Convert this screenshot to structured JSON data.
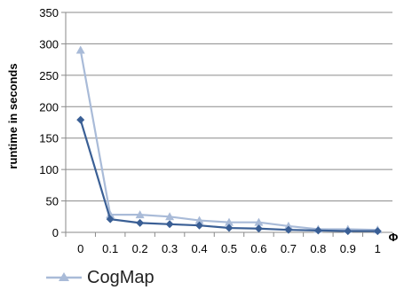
{
  "chart_data": {
    "type": "line",
    "title": "",
    "xlabel": "Φ",
    "ylabel": "runtime in seconds",
    "x": [
      "0",
      "0.1",
      "0.2",
      "0.3",
      "0.4",
      "0.5",
      "0.6",
      "0.7",
      "0.8",
      "0.9",
      "1"
    ],
    "ylim": [
      0,
      350
    ],
    "yticks": [
      "0",
      "50",
      "100",
      "150",
      "200",
      "250",
      "300",
      "350"
    ],
    "grid": true,
    "legend_position": "bottom-left",
    "series": [
      {
        "name": "",
        "color": "#3a5f95",
        "marker": "diamond",
        "values": [
          179,
          21,
          15,
          13,
          11,
          7,
          6,
          4,
          3,
          2,
          2
        ]
      },
      {
        "name": "CogMap",
        "color": "#a9bbd8",
        "marker": "triangle",
        "values": [
          290,
          28,
          28,
          25,
          19,
          16,
          16,
          10,
          5,
          5,
          4
        ]
      }
    ]
  }
}
